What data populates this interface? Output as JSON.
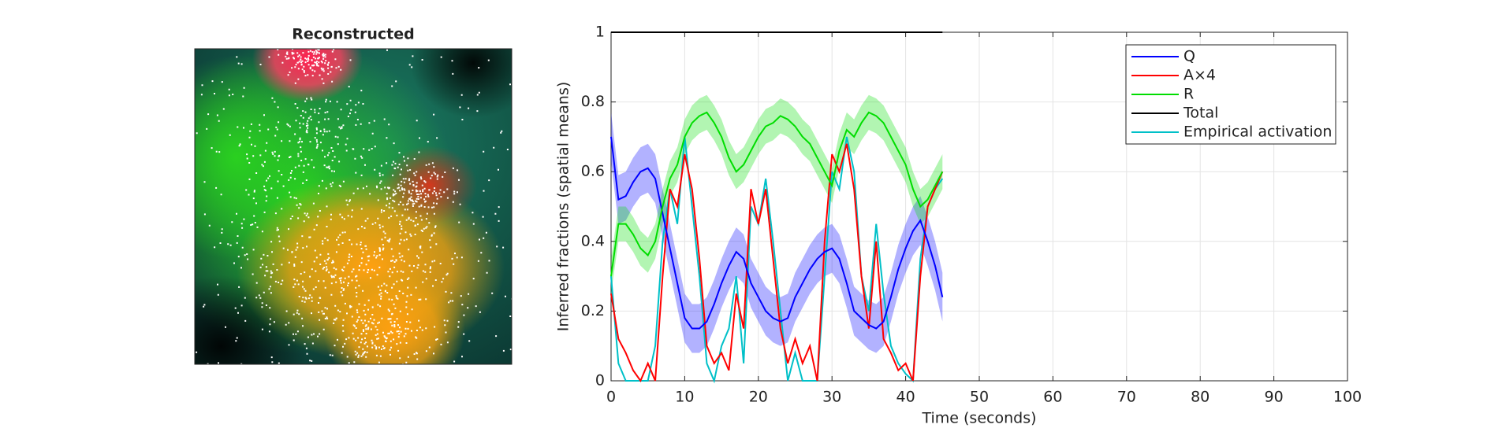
{
  "chart_data": [
    {
      "type": "image",
      "title": "Reconstructed"
    },
    {
      "type": "line",
      "xlabel": "Time (seconds)",
      "ylabel": "Inferred fractions (spatial means)",
      "xlim": [
        0,
        100
      ],
      "xticks": [
        0,
        10,
        20,
        30,
        40,
        50,
        60,
        70,
        80,
        90,
        100
      ],
      "ylim": [
        0,
        1
      ],
      "yticks": [
        0,
        0.2,
        0.4,
        0.6,
        0.8,
        1
      ],
      "grid": true,
      "legend": "top-right",
      "x": [
        0,
        1,
        2,
        3,
        4,
        5,
        6,
        7,
        8,
        9,
        10,
        11,
        12,
        13,
        14,
        15,
        16,
        17,
        18,
        19,
        20,
        21,
        22,
        23,
        24,
        25,
        26,
        27,
        28,
        29,
        30,
        31,
        32,
        33,
        34,
        35,
        36,
        37,
        38,
        39,
        40,
        41,
        42,
        43,
        44,
        45
      ],
      "series": [
        {
          "name": "Q",
          "color": "#0000ff",
          "error": 0.07,
          "values": [
            0.7,
            0.52,
            0.53,
            0.57,
            0.6,
            0.61,
            0.58,
            0.48,
            0.38,
            0.28,
            0.18,
            0.15,
            0.15,
            0.17,
            0.22,
            0.28,
            0.33,
            0.37,
            0.35,
            0.28,
            0.24,
            0.2,
            0.18,
            0.17,
            0.18,
            0.24,
            0.28,
            0.32,
            0.35,
            0.37,
            0.38,
            0.35,
            0.28,
            0.2,
            0.18,
            0.16,
            0.15,
            0.17,
            0.24,
            0.32,
            0.38,
            0.43,
            0.46,
            0.4,
            0.33,
            0.24
          ]
        },
        {
          "name": "A×4",
          "color": "#ff0000",
          "values": [
            0.25,
            0.12,
            0.08,
            0.03,
            0,
            0.05,
            0,
            0.3,
            0.55,
            0.5,
            0.65,
            0.55,
            0.35,
            0.1,
            0.05,
            0.08,
            0.03,
            0.25,
            0.15,
            0.55,
            0.45,
            0.55,
            0.35,
            0.15,
            0.05,
            0.12,
            0.05,
            0.1,
            0,
            0.4,
            0.65,
            0.6,
            0.68,
            0.55,
            0.3,
            0.15,
            0.4,
            0.12,
            0.08,
            0.03,
            0.05,
            0,
            0.3,
            0.5,
            0.55,
            0.6
          ]
        },
        {
          "name": "R",
          "color": "#00dd00",
          "error": 0.05,
          "values": [
            0.3,
            0.45,
            0.45,
            0.42,
            0.38,
            0.36,
            0.4,
            0.5,
            0.58,
            0.62,
            0.7,
            0.74,
            0.76,
            0.77,
            0.74,
            0.7,
            0.64,
            0.6,
            0.62,
            0.66,
            0.7,
            0.73,
            0.74,
            0.76,
            0.75,
            0.73,
            0.7,
            0.68,
            0.64,
            0.6,
            0.56,
            0.66,
            0.72,
            0.7,
            0.74,
            0.77,
            0.76,
            0.74,
            0.7,
            0.66,
            0.62,
            0.55,
            0.5,
            0.52,
            0.56,
            0.6
          ]
        },
        {
          "name": "Total",
          "color": "#000000",
          "values": [
            1,
            1,
            1,
            1,
            1,
            1,
            1,
            1,
            1,
            1,
            1,
            1,
            1,
            1,
            1,
            1,
            1,
            1,
            1,
            1,
            1,
            1,
            1,
            1,
            1,
            1,
            1,
            1,
            1,
            1,
            1,
            1,
            1,
            1,
            1,
            1,
            1,
            1,
            1,
            1,
            1,
            1,
            1,
            1,
            1,
            1
          ]
        },
        {
          "name": "Empirical activation",
          "color": "#00c0c8",
          "values": [
            0.3,
            0.05,
            0,
            0,
            0,
            0,
            0.1,
            0.4,
            0.55,
            0.45,
            0.7,
            0.5,
            0.3,
            0.05,
            0,
            0.1,
            0.15,
            0.3,
            0.05,
            0.5,
            0.45,
            0.58,
            0.4,
            0.2,
            0,
            0.08,
            0,
            0,
            0,
            0.3,
            0.6,
            0.55,
            0.7,
            0.6,
            0.3,
            0.2,
            0.45,
            0.25,
            0.1,
            0.05,
            0.02,
            0,
            0.35,
            0.5,
            0.55,
            0.58
          ]
        }
      ]
    }
  ]
}
